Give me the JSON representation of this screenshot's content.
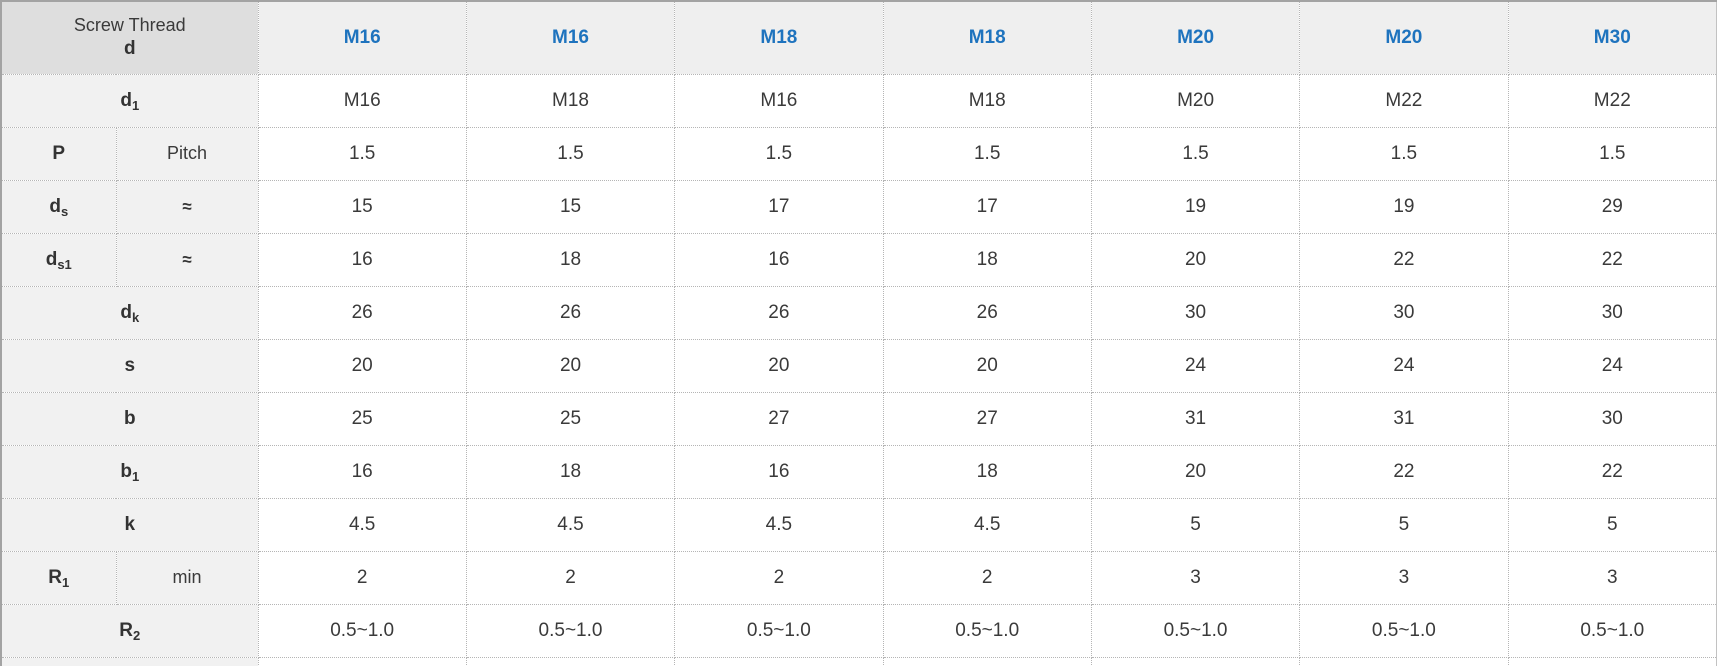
{
  "title": "Screw thread dimensions table",
  "colors": {
    "header_text_blue": "#1e73be",
    "corner_header_bg": "#dedede",
    "column_header_bg": "#efefef",
    "row_label_bg": "#f1f1f1",
    "data_text": "#3a3a3a",
    "dotted_border": "#b5b5b5",
    "outer_border": "#a3a3a3"
  },
  "table": {
    "corner": {
      "line1": "Screw Thread",
      "line2": "d"
    },
    "columns": [
      "M16",
      "M16",
      "M18",
      "M18",
      "M20",
      "M20",
      "M30"
    ],
    "rows": [
      {
        "label": {
          "base": "d",
          "sub": "1"
        },
        "qualifier": null,
        "qualifier_bold": false,
        "values": [
          "M16",
          "M18",
          "M16",
          "M18",
          "M20",
          "M22",
          "M22"
        ]
      },
      {
        "label": {
          "base": "P",
          "sub": ""
        },
        "qualifier": "Pitch",
        "qualifier_bold": false,
        "values": [
          "1.5",
          "1.5",
          "1.5",
          "1.5",
          "1.5",
          "1.5",
          "1.5"
        ]
      },
      {
        "label": {
          "base": "d",
          "sub": "s"
        },
        "qualifier": "≈",
        "qualifier_bold": true,
        "values": [
          "15",
          "15",
          "17",
          "17",
          "19",
          "19",
          "29"
        ]
      },
      {
        "label": {
          "base": "d",
          "sub": "s1"
        },
        "qualifier": "≈",
        "qualifier_bold": true,
        "values": [
          "16",
          "18",
          "16",
          "18",
          "20",
          "22",
          "22"
        ]
      },
      {
        "label": {
          "base": "d",
          "sub": "k"
        },
        "qualifier": null,
        "qualifier_bold": false,
        "values": [
          "26",
          "26",
          "26",
          "26",
          "30",
          "30",
          "30"
        ]
      },
      {
        "label": {
          "base": "s",
          "sub": ""
        },
        "qualifier": null,
        "qualifier_bold": false,
        "values": [
          "20",
          "20",
          "20",
          "20",
          "24",
          "24",
          "24"
        ]
      },
      {
        "label": {
          "base": "b",
          "sub": ""
        },
        "qualifier": null,
        "qualifier_bold": false,
        "values": [
          "25",
          "25",
          "27",
          "27",
          "31",
          "31",
          "30"
        ]
      },
      {
        "label": {
          "base": "b",
          "sub": "1"
        },
        "qualifier": null,
        "qualifier_bold": false,
        "values": [
          "16",
          "18",
          "16",
          "18",
          "20",
          "22",
          "22"
        ]
      },
      {
        "label": {
          "base": "k",
          "sub": ""
        },
        "qualifier": null,
        "qualifier_bold": false,
        "values": [
          "4.5",
          "4.5",
          "4.5",
          "4.5",
          "5",
          "5",
          "5"
        ]
      },
      {
        "label": {
          "base": "R",
          "sub": "1"
        },
        "qualifier": "min",
        "qualifier_bold": false,
        "values": [
          "2",
          "2",
          "2",
          "2",
          "3",
          "3",
          "3"
        ]
      },
      {
        "label": {
          "base": "R",
          "sub": "2"
        },
        "qualifier": null,
        "qualifier_bold": false,
        "values": [
          "0.5~1.0",
          "0.5~1.0",
          "0.5~1.0",
          "0.5~1.0",
          "0.5~1.0",
          "0.5~1.0",
          "0.5~1.0"
        ]
      }
    ]
  }
}
